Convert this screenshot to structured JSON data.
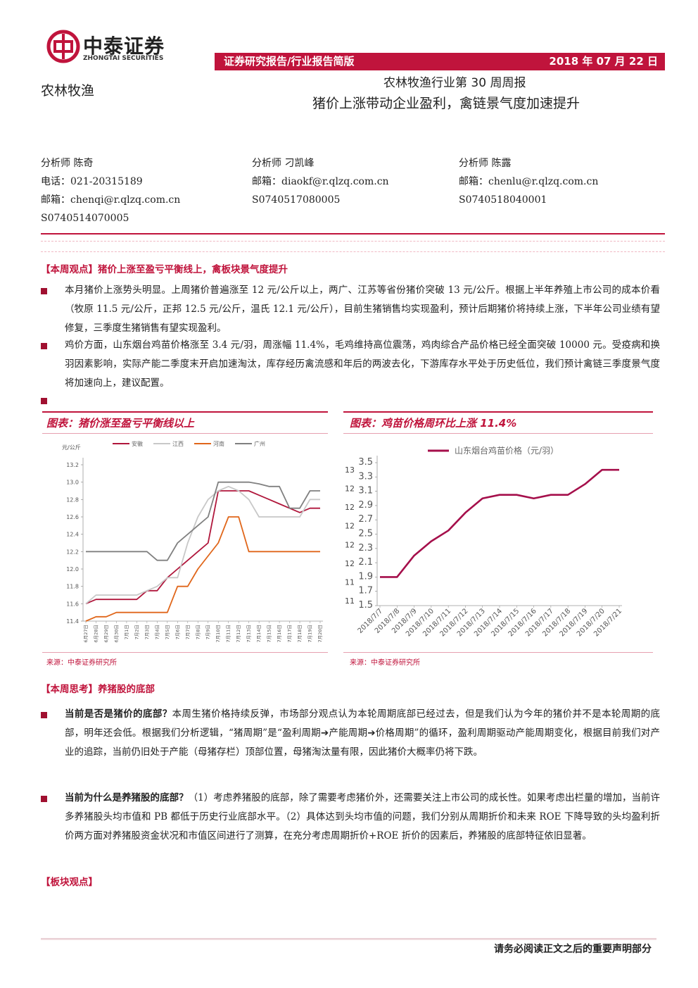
{
  "header": {
    "logo_cn": "中泰证券",
    "logo_en": "ZHONGTAI SECURITIES",
    "report_type": "证券研究报告/行业报告简版",
    "date": "2018 年 07 月 22 日",
    "sector": "农林牧渔",
    "title": "农林牧渔行业第 30 周周报",
    "subtitle": "猪价上涨带动企业盈利，禽链景气度加速提升"
  },
  "analysts": [
    {
      "lines": [
        "分析师 陈奇",
        "电话：021-20315189",
        "邮箱：chenqi@r.qlzq.com.cn",
        "S0740514070005"
      ]
    },
    {
      "lines": [
        "分析师 刁凯峰",
        "邮箱：diaokf@r.qlzq.com.cn",
        "S0740517080005"
      ]
    },
    {
      "lines": [
        "分析师 陈露",
        "邮箱：chenlu@r.qlzq.com.cn",
        "S0740518040001"
      ]
    }
  ],
  "sections": [
    {
      "heading": "【本周观点】猪价上涨至盈亏平衡线上，禽板块景气度提升",
      "bullets": [
        {
          "text": "本月猪价上涨势头明显。上周猪价普遍涨至 12 元/公斤以上，两广、江苏等省份猪价突破 13 元/公斤。根据上半年养殖上市公司的成本价看（牧原 11.5 元/公斤，正邦 12.5 元/公斤，温氏 12.1 元/公斤），目前生猪销售均实现盈利，预计后期猪价将持续上涨，下半年公司业绩有望修复，三季度生猪销售有望实现盈利。"
        },
        {
          "text": "鸡价方面，山东烟台鸡苗价格涨至 3.4 元/羽，周涨幅 11.4%，毛鸡维持高位震荡，鸡肉综合产品价格已经全面突破 10000 元。受疫病和换羽因素影响，实际产能二季度末开启加速淘汰，库存经历禽流感和年后的两波去化，下游库存水平处于历史低位，我们预计禽链三季度景气度将加速向上，建议配置。"
        }
      ]
    },
    {
      "heading": "【本周思考】养猪股的底部",
      "bullets": [
        {
          "lead": "当前是否是猪价的底部？",
          "text": "本周生猪价格持续反弹，市场部分观点认为本轮周期底部已经过去，但是我们认为今年的猪价并不是本轮周期的底部，明年还会低。根据我们分析逻辑，“猪周期”是“盈利周期➔产能周期➔价格周期”的循环，盈利周期驱动产能周期变化，根据目前我们对产业的追踪，当前仍旧处于产能（母猪存栏）顶部位置，母猪淘汰量有限，因此猪价大概率仍将下跌。"
        },
        {
          "lead": "当前为什么是养猪股的底部？",
          "text": "（1）考虑养猪股的底部，除了需要考虑猪价外，还需要关注上市公司的成长性。如果考虑出栏量的增加，当前许多养猪股头均市值和 PB 都低于历史行业底部水平。（2）具体达到头均市值的问题，我们分别从周期折价和未来 ROE 下降导致的头均盈利折价两方面对养猪股资金状况和市值区间进行了测算，在充分考虑周期折价+ROE 折价的因素后，养猪股的底部特征依旧显著。"
        }
      ]
    },
    {
      "heading": "【板块观点】",
      "bullets": []
    }
  ],
  "footer": "请务必阅读正文之后的重要声明部分",
  "chart_data": [
    {
      "type": "line",
      "title": "图表：猪价涨至盈亏平衡线以上",
      "unit": "元/公斤",
      "source": "来源：中泰证券研究所",
      "categories": [
        "6月27日",
        "6月28日",
        "6月29日",
        "6月30日",
        "7月1日",
        "7月2日",
        "7月3日",
        "7月4日",
        "7月5日",
        "7月6日",
        "7月7日",
        "7月8日",
        "7月9日",
        "7月10日",
        "7月11日",
        "7月12日",
        "7月13日",
        "7月14日",
        "7月15日",
        "7月16日",
        "7月17日",
        "7月18日",
        "7月19日",
        "7月20日"
      ],
      "series": [
        {
          "name": "安徽",
          "color": "#b0163b",
          "values": [
            11.6,
            11.65,
            11.65,
            11.65,
            11.65,
            11.65,
            11.75,
            11.75,
            11.9,
            12.0,
            12.1,
            12.2,
            12.3,
            12.9,
            12.9,
            12.9,
            12.9,
            12.85,
            12.8,
            12.75,
            12.7,
            12.65,
            12.7,
            12.7
          ]
        },
        {
          "name": "江西",
          "color": "#c8c8c8",
          "values": [
            11.6,
            11.7,
            11.7,
            11.7,
            11.7,
            11.7,
            11.75,
            11.8,
            11.9,
            11.9,
            12.3,
            12.6,
            12.8,
            12.9,
            12.95,
            12.9,
            12.8,
            12.6,
            12.6,
            12.6,
            12.6,
            12.6,
            12.8,
            12.8
          ]
        },
        {
          "name": "河南",
          "color": "#e0661a",
          "values": [
            11.4,
            11.45,
            11.45,
            11.5,
            11.5,
            11.5,
            11.5,
            11.5,
            11.5,
            11.8,
            11.8,
            12.0,
            12.15,
            12.3,
            12.6,
            12.6,
            12.2,
            12.2,
            12.2,
            12.2,
            12.2,
            12.2,
            12.2,
            12.2
          ]
        },
        {
          "name": "广州",
          "color": "#808080",
          "values": [
            12.2,
            12.2,
            12.2,
            12.2,
            12.2,
            12.2,
            12.2,
            12.1,
            12.1,
            12.3,
            12.4,
            12.5,
            12.6,
            13.0,
            13.0,
            13.0,
            13.0,
            12.98,
            12.95,
            12.95,
            12.7,
            12.7,
            12.9,
            12.9
          ]
        }
      ],
      "ylim": [
        11.4,
        13.2
      ],
      "yticks": [
        11.4,
        11.6,
        11.8,
        {
          "value": 12,
          "label": "12.0"
        },
        12.2,
        12.4,
        12.6,
        12.8,
        {
          "value": 13,
          "label": "13.0"
        },
        13.2
      ]
    },
    {
      "type": "line",
      "title": "图表：鸡苗价格周环比上涨 11.4%",
      "source": "来源：中泰证券研究所",
      "side_labels": [
        "13",
        "12",
        "12",
        "12",
        "12",
        "12",
        "11",
        "11"
      ],
      "categories": [
        "2018/7/7",
        "2018/7/8",
        "2018/7/9",
        "2018/7/10",
        "2018/7/11",
        "2018/7/12",
        "2018/7/13",
        "2018/7/14",
        "2018/7/15",
        "2018/7/16",
        "2018/7/17",
        "2018/7/18",
        "2018/7/19",
        "2018/7/20",
        "2018/7/21"
      ],
      "series": [
        {
          "name": "山东烟台鸡苗价格（元/羽）",
          "color": "#a50f4b",
          "values": [
            1.9,
            1.9,
            2.2,
            2.4,
            2.55,
            2.8,
            3.0,
            3.05,
            3.05,
            3.0,
            3.05,
            3.05,
            3.2,
            3.4,
            3.4
          ]
        }
      ],
      "ylim": [
        1.5,
        3.5
      ],
      "yticks": [
        1.5,
        1.7,
        1.9,
        2.1,
        2.3,
        2.5,
        2.7,
        2.9,
        3.1,
        3.3,
        3.5
      ]
    }
  ]
}
